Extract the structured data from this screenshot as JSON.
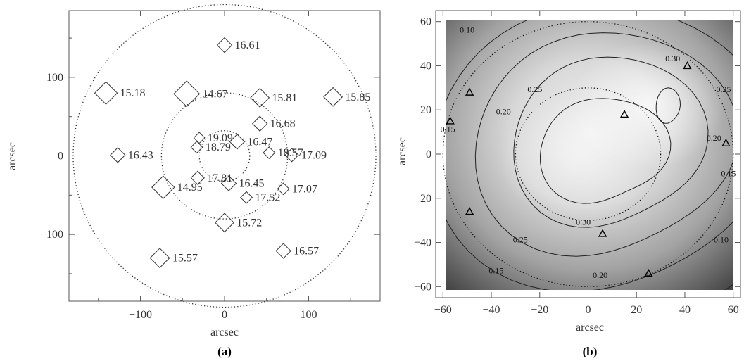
{
  "chart_data": [
    {
      "type": "scatter",
      "panel_label": "(a)",
      "xlabel": "arcsec",
      "ylabel": "arcsec",
      "xlim": [
        -185,
        185
      ],
      "ylim": [
        -185,
        185
      ],
      "x_ticks": [
        -100,
        0,
        100
      ],
      "y_ticks": [
        -100,
        0,
        100
      ],
      "x_tick_labels": [
        "−100",
        "0",
        "100"
      ],
      "y_tick_labels": [
        "−100",
        "0",
        "100"
      ],
      "circles": [
        {
          "cx": 0,
          "cy": 0,
          "r": 30
        },
        {
          "cx": 0,
          "cy": 0,
          "r": 75
        },
        {
          "cx": 0,
          "cy": 0,
          "r": 180
        }
      ],
      "points": [
        {
          "x": 0,
          "y": 141,
          "size": 1,
          "label": "16.61"
        },
        {
          "x": -141,
          "y": 80,
          "size": 2.0,
          "label": "15.18"
        },
        {
          "x": -45,
          "y": 79,
          "size": 2.4,
          "label": "14.67"
        },
        {
          "x": 42,
          "y": 74,
          "size": 1.5,
          "label": "15.81"
        },
        {
          "x": 129,
          "y": 75,
          "size": 1.5,
          "label": "15.85"
        },
        {
          "x": 42,
          "y": 41,
          "size": 1,
          "label": "16.68"
        },
        {
          "x": -30,
          "y": 23,
          "size": 0.5,
          "label": "19.09"
        },
        {
          "x": -33,
          "y": 11,
          "size": 0.6,
          "label": "18.79"
        },
        {
          "x": 15,
          "y": 18,
          "size": 1,
          "label": "16.47"
        },
        {
          "x": 53,
          "y": 4,
          "size": 0.6,
          "label": "18.57"
        },
        {
          "x": -127,
          "y": 1,
          "size": 1,
          "label": "16.43"
        },
        {
          "x": 80,
          "y": 1,
          "size": 0.8,
          "label": "17.09"
        },
        {
          "x": -32,
          "y": -28,
          "size": 0.8,
          "label": "17.81"
        },
        {
          "x": -73,
          "y": -40,
          "size": 2.0,
          "label": "14.95"
        },
        {
          "x": 5,
          "y": -35,
          "size": 1,
          "label": "16.45"
        },
        {
          "x": 26,
          "y": -53,
          "size": 0.6,
          "label": "17.52"
        },
        {
          "x": 70,
          "y": -42,
          "size": 0.6,
          "label": "17.07"
        },
        {
          "x": 0,
          "y": -85,
          "size": 1.5,
          "label": "15.72"
        },
        {
          "x": 70,
          "y": -121,
          "size": 1,
          "label": "16.57"
        },
        {
          "x": -77,
          "y": -130,
          "size": 1.6,
          "label": "15.57"
        }
      ]
    },
    {
      "type": "heatmap",
      "panel_label": "(b)",
      "xlabel": "arcsec",
      "ylabel": "arcsec",
      "xlim": [
        -63,
        63
      ],
      "ylim": [
        -65,
        65
      ],
      "map_extent": {
        "x": [
          -60,
          60
        ],
        "y": [
          -60,
          60
        ]
      },
      "x_ticks": [
        -60,
        -40,
        -20,
        0,
        20,
        40,
        60
      ],
      "y_ticks": [
        -60,
        -40,
        -20,
        0,
        20,
        40,
        60
      ],
      "x_tick_labels": [
        "−60",
        "−40",
        "−20",
        "0",
        "20",
        "40",
        "60"
      ],
      "y_tick_labels": [
        "−60",
        "−40",
        "−20",
        "0",
        "20",
        "40",
        "60"
      ],
      "circles": [
        {
          "cx": 0,
          "cy": 0,
          "r": 30
        },
        {
          "cx": 0,
          "cy": 0,
          "r": 60
        }
      ],
      "contour_levels": [
        0.1,
        0.15,
        0.2,
        0.25,
        0.3
      ],
      "contour_labels": [
        {
          "x": -50,
          "y": 55,
          "text": "0.10"
        },
        {
          "x": 35,
          "y": 42,
          "text": "0.30"
        },
        {
          "x": -22,
          "y": 28,
          "text": "0.25"
        },
        {
          "x": -35,
          "y": 18,
          "text": "0.20"
        },
        {
          "x": 56,
          "y": 28,
          "text": "0.25"
        },
        {
          "x": -58,
          "y": 10,
          "text": "0.15"
        },
        {
          "x": 52,
          "y": 6,
          "text": "0.20"
        },
        {
          "x": 58,
          "y": -10,
          "text": "0.15"
        },
        {
          "x": -28,
          "y": -40,
          "text": "0.25"
        },
        {
          "x": -2,
          "y": -32,
          "text": "0.30"
        },
        {
          "x": 55,
          "y": -40,
          "text": "0.10"
        },
        {
          "x": -38,
          "y": -54,
          "text": "0.15"
        },
        {
          "x": 5,
          "y": -56,
          "text": "0.20"
        }
      ],
      "markers": [
        {
          "x": 41,
          "y": 40
        },
        {
          "x": -49,
          "y": 28
        },
        {
          "x": 15,
          "y": 18
        },
        {
          "x": -57,
          "y": 15
        },
        {
          "x": 57,
          "y": 5
        },
        {
          "x": -49,
          "y": -26
        },
        {
          "x": 6,
          "y": -36
        },
        {
          "x": 25,
          "y": -54
        }
      ]
    }
  ]
}
